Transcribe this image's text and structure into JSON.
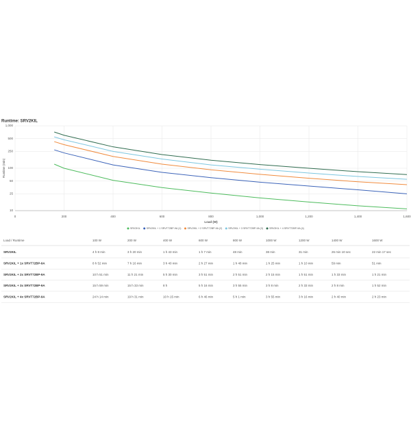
{
  "chart_data": {
    "type": "line",
    "title": "Runtime: SRV2KIL",
    "x_label": "Load (W)",
    "y_label": "Runtime (min)",
    "log_y": true,
    "grid": true,
    "x": [
      160,
      200,
      400,
      600,
      800,
      1000,
      1200,
      1400,
      1600
    ],
    "xlim": [
      0,
      1600
    ],
    "xticks": [
      0,
      200,
      400,
      600,
      800,
      {
        "value": 1000,
        "label": "1,000"
      },
      {
        "value": 1200,
        "label": "1,200"
      },
      {
        "value": 1400,
        "label": "1,400"
      },
      {
        "value": 1600,
        "label": "1,600"
      }
    ],
    "ylim": [
      10,
      1000
    ],
    "yticks": [
      10,
      25,
      50,
      100,
      250,
      500,
      {
        "value": 1000,
        "label": "1,000"
      }
    ],
    "series": [
      {
        "name": "SRV2KIL",
        "color": "#4cbb5c",
        "values": [
          125,
          100,
          52,
          35,
          26,
          20,
          16,
          13,
          11
        ]
      },
      {
        "name": "SRV2KIL + 1 SRVT72BP-9A (1)",
        "color": "#3a62b8",
        "values": [
          272,
          230,
          120,
          80,
          60,
          47,
          38,
          31,
          25
        ]
      },
      {
        "name": "SRV2KIL + 2 SRVT72BP-9A (2)",
        "color": "#f08a3c",
        "values": [
          425,
          360,
          190,
          125,
          92,
          72,
          58,
          48,
          41
        ]
      },
      {
        "name": "SRV2KIL + 3 SRVT72BP-9A (3)",
        "color": "#7cc6e0",
        "values": [
          550,
          470,
          250,
          165,
          120,
          95,
          77,
          64,
          55
        ]
      },
      {
        "name": "SRV2KIL + 4 SRVT72BP-9A (4)",
        "color": "#2e6b4e",
        "values": [
          715,
          600,
          320,
          210,
          155,
          122,
          100,
          83,
          71
        ]
      }
    ]
  },
  "table": {
    "header": [
      "Load / Runtime",
      "100 W",
      "200 W",
      "400 W",
      "600 W",
      "800 W",
      "1000 W",
      "1200 W",
      "1400 W",
      "1600 W"
    ],
    "rows": [
      [
        "SRV2KIL",
        "4 h 8 min",
        "3 h 20 min",
        "1 h 43 min",
        "1 h 7 min",
        "48 min",
        "38 min",
        "31 min",
        "26 min 10 sec",
        "22 min 17 sec"
      ],
      [
        "SRV2KIL + 1x SRVT72BP-9A",
        "8 h 52 min",
        "7 h 16 min",
        "3 h 40 min",
        "2 h 27 min",
        "1 h 48 min",
        "1 h 25 min",
        "1 h 10 min",
        "59 min",
        "51 min"
      ],
      [
        "SRV2KIL + 2x SRVT72BP-9A",
        "10 h 51 min",
        "11 h 21 min",
        "5 h 30 min",
        "3 h 51 min",
        "2 h 51 min",
        "2 h 15 min",
        "1 h 51 min",
        "1 h 33 min",
        "1 h 21 min"
      ],
      [
        "SRV2KIL + 3x SRVT72BP-9A",
        "15 h 59 min",
        "15 h 33 min",
        "8 h",
        "5 h 16 min",
        "3 h 55 min",
        "3 h 8 min",
        "2 h 33 min",
        "2 h 8 min",
        "1 h 52 min"
      ],
      [
        "SRV2KIL + 4x SRVT72BP-9A",
        "24 h 14 min",
        "19 h 31 min",
        "10 h 15 min",
        "6 h 46 min",
        "5 h 1 min",
        "3 h 55 min",
        "3 h 16 min",
        "2 h 40 min",
        "2 h 23 min"
      ]
    ]
  }
}
